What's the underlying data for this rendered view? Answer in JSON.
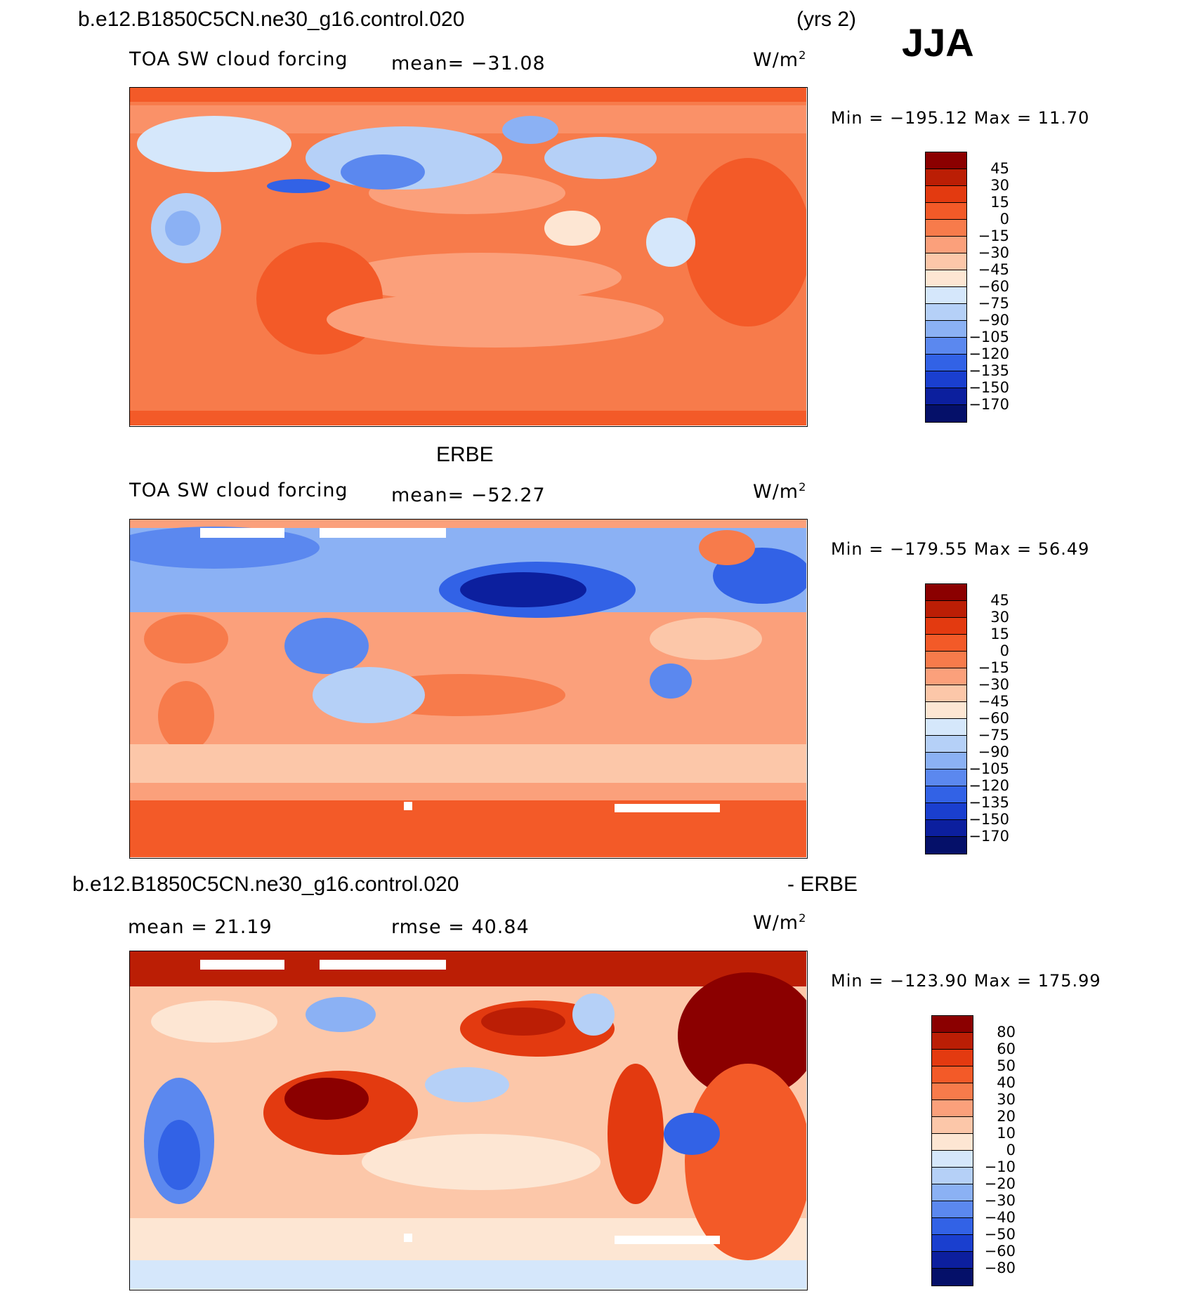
{
  "page": {
    "title_case": "b.e12.B1850C5CN.ne30_g16.control.020",
    "yrs": "(yrs 2)",
    "season": "JJA",
    "obs_title": "ERBE",
    "diff_title_case": "b.e12.B1850C5CN.ne30_g16.control.020",
    "diff_title_obs": "- ERBE"
  },
  "panels": [
    {
      "id": "model",
      "variable": "TOA SW cloud forcing",
      "mean_label": "mean= −31.08",
      "units": "W/m",
      "units_sup": "2",
      "min_label": "Min",
      "min_value": "−195.12",
      "max_label": "Max",
      "max_value": "11.70"
    },
    {
      "id": "obs",
      "variable": "TOA SW cloud forcing",
      "mean_label": "mean= −52.27",
      "units": "W/m",
      "units_sup": "2",
      "min_label": "Min",
      "min_value": "−179.55",
      "max_label": "Max",
      "max_value": "56.49"
    },
    {
      "id": "diff",
      "mean_label": "mean =  21.19",
      "rmse_label": "rmse =  40.84",
      "units": "W/m",
      "units_sup": "2",
      "min_label": "Min",
      "min_value": "−123.90",
      "max_label": "Max",
      "max_value": "175.99"
    }
  ],
  "chart_data": [
    {
      "type": "heatmap",
      "title": "TOA SW cloud forcing",
      "source": "b.e12.B1850C5CN.ne30_g16.control.020",
      "mean": -31.08,
      "min": -195.12,
      "max": 11.7,
      "units": "W/m2",
      "colorbar_levels": [
        "45",
        "30",
        "15",
        "0",
        "−15",
        "−30",
        "−45",
        "−60",
        "−75",
        "−90",
        "−105",
        "−120",
        "−135",
        "−150",
        "−170"
      ],
      "colorbar_colors": [
        "#8b0000",
        "#bb1e05",
        "#e33a10",
        "#f35a28",
        "#f77b4b",
        "#fba07b",
        "#fcc7a9",
        "#fde6d3",
        "#d5e7fb",
        "#b5d0f7",
        "#8bb1f4",
        "#5b88ef",
        "#3262e6",
        "#1a3fcf",
        "#0c1f9e",
        "#051069"
      ]
    },
    {
      "type": "heatmap",
      "title": "TOA SW cloud forcing",
      "source": "ERBE",
      "mean": -52.27,
      "min": -179.55,
      "max": 56.49,
      "units": "W/m2",
      "colorbar_levels": [
        "45",
        "30",
        "15",
        "0",
        "−15",
        "−30",
        "−45",
        "−60",
        "−75",
        "−90",
        "−105",
        "−120",
        "−135",
        "−150",
        "−170"
      ],
      "colorbar_colors": [
        "#8b0000",
        "#bb1e05",
        "#e33a10",
        "#f35a28",
        "#f77b4b",
        "#fba07b",
        "#fcc7a9",
        "#fde6d3",
        "#d5e7fb",
        "#b5d0f7",
        "#8bb1f4",
        "#5b88ef",
        "#3262e6",
        "#1a3fcf",
        "#0c1f9e",
        "#051069"
      ]
    },
    {
      "type": "heatmap",
      "title": "b.e12.B1850C5CN.ne30_g16.control.020 - ERBE",
      "mean": 21.19,
      "rmse": 40.84,
      "min": -123.9,
      "max": 175.99,
      "units": "W/m2",
      "colorbar_levels": [
        "80",
        "60",
        "50",
        "40",
        "30",
        "20",
        "10",
        "0",
        "−10",
        "−20",
        "−30",
        "−40",
        "−50",
        "−60",
        "−80"
      ],
      "colorbar_colors": [
        "#8b0000",
        "#bb1e05",
        "#e33a10",
        "#f35a28",
        "#f77b4b",
        "#fba07b",
        "#fcc7a9",
        "#fde6d3",
        "#d5e7fb",
        "#b5d0f7",
        "#8bb1f4",
        "#5b88ef",
        "#3262e6",
        "#1a3fcf",
        "#0c1f9e",
        "#051069"
      ]
    }
  ]
}
